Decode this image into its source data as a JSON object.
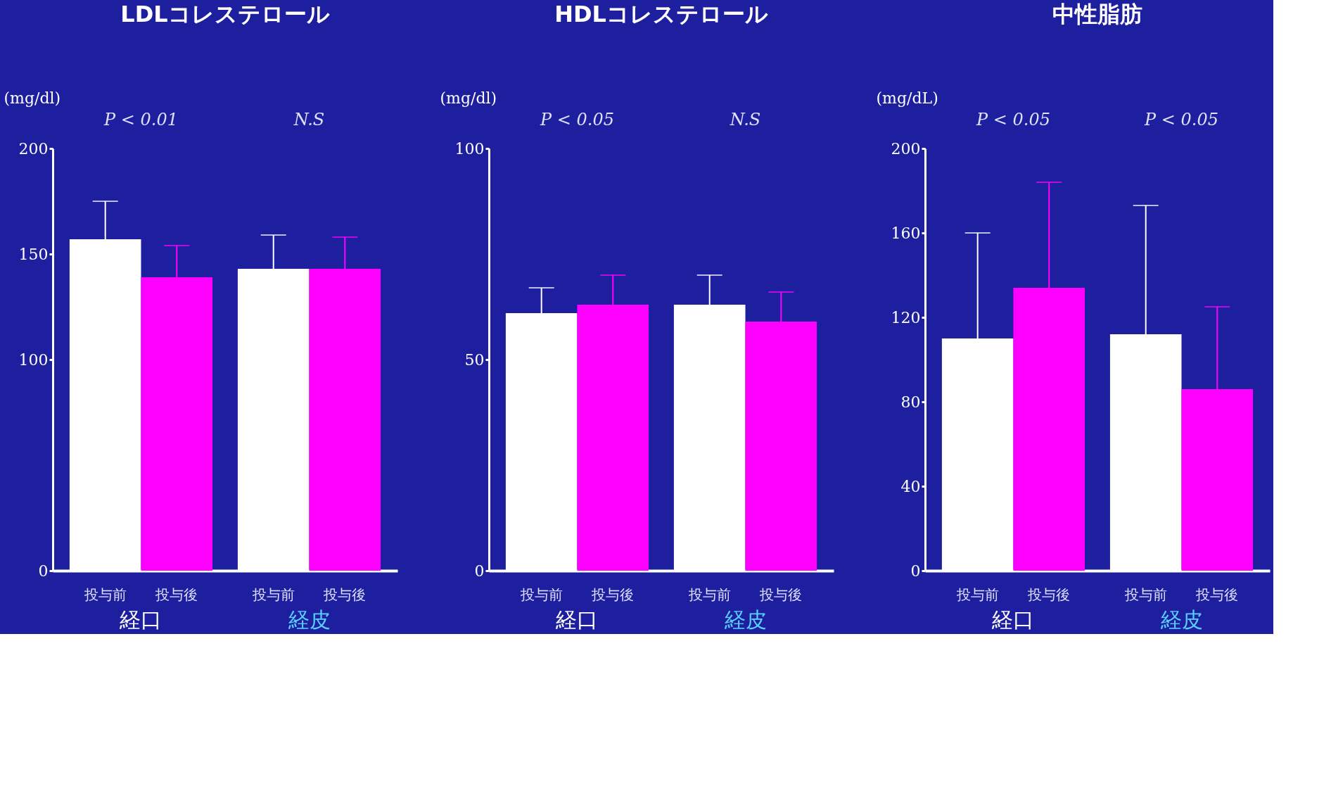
{
  "chart_data": [
    {
      "type": "bar",
      "title": "LDLコレステロール",
      "ylabel": "(mg/dl)",
      "categories": [
        "経口",
        "経皮"
      ],
      "ylim": [
        0,
        200
      ],
      "yticks": [
        0,
        100,
        150,
        200
      ],
      "series": [
        {
          "name": "投与前",
          "color": "#ffffff",
          "values": [
            157,
            143
          ],
          "errors": [
            [
              157,
              175
            ],
            [
              143,
              159
            ]
          ]
        },
        {
          "name": "投与後",
          "color": "#ff00ff",
          "values": [
            139,
            143
          ],
          "errors": [
            [
              139,
              154
            ],
            [
              143,
              158
            ]
          ]
        }
      ],
      "annotations": [
        "P < 0.01",
        "N.S"
      ]
    },
    {
      "type": "bar",
      "title": "HDLコレステロール",
      "ylabel": "(mg/dl)",
      "categories": [
        "経口",
        "経皮"
      ],
      "ylim": [
        0,
        100
      ],
      "yticks": [
        0,
        50,
        100
      ],
      "series": [
        {
          "name": "投与前",
          "color": "#ffffff",
          "values": [
            61,
            63
          ],
          "errors": [
            [
              61,
              67
            ],
            [
              63,
              70
            ]
          ]
        },
        {
          "name": "投与後",
          "color": "#ff00ff",
          "values": [
            63,
            59
          ],
          "errors": [
            [
              63,
              70
            ],
            [
              59,
              66
            ]
          ]
        }
      ],
      "annotations": [
        "P < 0.05",
        "N.S"
      ]
    },
    {
      "type": "bar",
      "title": "中性脂肪",
      "ylabel": "(mg/dL)",
      "categories": [
        "経口",
        "経皮"
      ],
      "ylim": [
        0,
        200
      ],
      "yticks": [
        0,
        40,
        80,
        120,
        160,
        200
      ],
      "series": [
        {
          "name": "投与前",
          "color": "#ffffff",
          "values": [
            110,
            112
          ],
          "errors": [
            [
              110,
              160
            ],
            [
              112,
              173
            ]
          ]
        },
        {
          "name": "投与後",
          "color": "#ff00ff",
          "values": [
            134,
            86
          ],
          "errors": [
            [
              134,
              184
            ],
            [
              86,
              125
            ]
          ]
        }
      ],
      "annotations": [
        "P < 0.05",
        "P < 0.05"
      ]
    }
  ]
}
